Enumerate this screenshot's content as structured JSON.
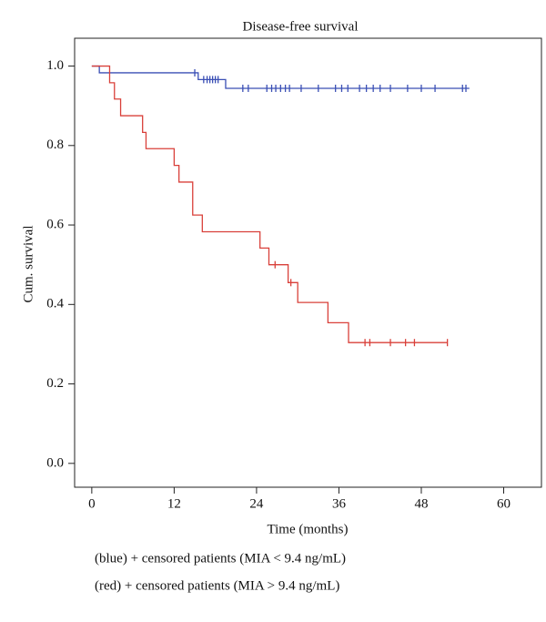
{
  "chart_data": {
    "type": "km_step",
    "title": "Disease-free survival",
    "xlabel": "Time (months)",
    "ylabel": "Cum. survival",
    "xlim": [
      -2.5,
      65.5
    ],
    "ylim": [
      -0.06,
      1.07
    ],
    "xticks": [
      0,
      12,
      24,
      36,
      48,
      60
    ],
    "yticks": [
      {
        "value": 0,
        "label": "0.0"
      },
      0.2,
      0.4,
      0.6,
      0.8,
      {
        "value": 1,
        "label": "1.0"
      }
    ],
    "series": [
      {
        "color": "#3a4fb5",
        "x": [
          0,
          1.1,
          15.5,
          19.5,
          55
        ],
        "values": [
          1,
          0.983,
          0.966,
          0.944,
          0.944
        ],
        "censored_x": [
          15,
          16.3,
          16.8,
          17.2,
          17.6,
          18,
          18.4,
          22,
          22.8,
          25.5,
          26.2,
          26.8,
          27.5,
          28.2,
          28.8,
          30.5,
          33,
          35.5,
          36.4,
          37.3,
          39,
          40,
          41,
          42,
          43.5,
          46,
          48,
          50,
          54,
          54.5
        ],
        "censored_values": [
          0.983,
          0.966,
          0.966,
          0.966,
          0.966,
          0.966,
          0.966,
          0.944,
          0.944,
          0.944,
          0.944,
          0.944,
          0.944,
          0.944,
          0.944,
          0.944,
          0.944,
          0.944,
          0.944,
          0.944,
          0.944,
          0.944,
          0.944,
          0.944,
          0.944,
          0.944,
          0.944,
          0.944,
          0.944,
          0.944
        ]
      },
      {
        "color": "#d9403a",
        "x": [
          0,
          2.6,
          3.3,
          4.2,
          7.4,
          7.9,
          12,
          12.7,
          14.7,
          16.1,
          24.5,
          25.8,
          28.6,
          30,
          34.4,
          37.4,
          51.8
        ],
        "values": [
          1,
          0.958,
          0.917,
          0.875,
          0.833,
          0.792,
          0.75,
          0.708,
          0.625,
          0.583,
          0.542,
          0.5,
          0.455,
          0.405,
          0.354,
          0.304,
          0.304
        ],
        "censored_x": [
          26.7,
          29,
          39.8,
          40.5,
          43.5,
          45.7,
          47,
          51.8
        ],
        "censored_values": [
          0.5,
          0.455,
          0.304,
          0.304,
          0.304,
          0.304,
          0.304,
          0.304
        ]
      }
    ],
    "notes": [
      "(blue) + censored patients (MIA < 9.4 ng/mL)",
      "(red) + censored patients (MIA > 9.4 ng/mL)"
    ]
  }
}
